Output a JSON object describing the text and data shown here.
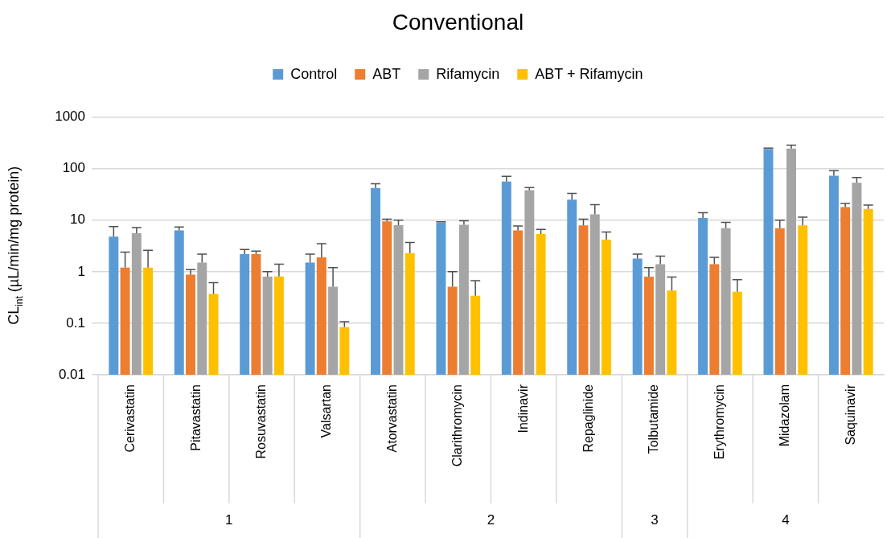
{
  "chart_data": {
    "type": "bar",
    "title": "Conventional",
    "ylabel": "CL$_{int}$ (µL/min/mg protein)",
    "categories": [
      "Cerivastatin",
      "Pitavastatin",
      "Rosuvastatin",
      "Valsartan",
      "Atorvastatin",
      "Clarithromycin",
      "Indinavir",
      "Repaglinide",
      "Tolbutamide",
      "Erythromycin",
      "Midazolam",
      "Saquinavir"
    ],
    "series": [
      {
        "name": "Control",
        "color": "#5b9bd5",
        "values": [
          4.8,
          6.3,
          2.2,
          1.5,
          42,
          9.0,
          56,
          25,
          1.8,
          11,
          240,
          73
        ],
        "errors": [
          [
            4.8,
            7.5
          ],
          [
            6.3,
            7.4
          ],
          [
            2.2,
            2.7
          ],
          [
            1.5,
            2.2
          ],
          [
            42,
            51
          ],
          [
            9.0,
            9.3
          ],
          [
            56,
            71
          ],
          [
            25,
            33
          ],
          [
            1.8,
            2.2
          ],
          [
            11,
            14
          ],
          [
            240,
            250
          ],
          [
            73,
            91
          ]
        ]
      },
      {
        "name": "ABT",
        "color": "#ed7d31",
        "values": [
          1.2,
          0.88,
          2.2,
          1.9,
          9.5,
          0.51,
          6.3,
          7.9,
          0.8,
          1.4,
          7.0,
          18
        ],
        "errors": [
          [
            1.2,
            2.4
          ],
          [
            0.88,
            1.1
          ],
          [
            2.2,
            2.5
          ],
          [
            1.9,
            3.5
          ],
          [
            9.5,
            10.5
          ],
          [
            0.51,
            1.0
          ],
          [
            6.3,
            7.7
          ],
          [
            7.9,
            10.5
          ],
          [
            0.8,
            1.2
          ],
          [
            1.4,
            1.9
          ],
          [
            7.0,
            10
          ],
          [
            18,
            21
          ]
        ]
      },
      {
        "name": "Rifamycin",
        "color": "#a5a5a5",
        "values": [
          5.6,
          1.5,
          0.8,
          0.51,
          8.0,
          8.1,
          38,
          13,
          1.4,
          7.0,
          245,
          53
        ],
        "errors": [
          [
            5.6,
            7.2
          ],
          [
            1.5,
            2.2
          ],
          [
            0.8,
            1.0
          ],
          [
            0.51,
            1.2
          ],
          [
            8.0,
            10
          ],
          [
            8.1,
            9.7
          ],
          [
            38,
            43
          ],
          [
            13,
            20
          ],
          [
            1.4,
            2.0
          ],
          [
            7.0,
            9.1
          ],
          [
            245,
            285
          ],
          [
            53,
            67
          ]
        ]
      },
      {
        "name": "ABT + Rifamycin",
        "color": "#ffc000",
        "values": [
          1.2,
          0.37,
          0.81,
          0.084,
          2.3,
          0.34,
          5.4,
          4.2,
          0.43,
          0.41,
          7.9,
          16.5
        ],
        "errors": [
          [
            1.2,
            2.6
          ],
          [
            0.37,
            0.61
          ],
          [
            0.81,
            1.4
          ],
          [
            0.084,
            0.107
          ],
          [
            2.3,
            3.7
          ],
          [
            0.34,
            0.67
          ],
          [
            5.4,
            6.6
          ],
          [
            4.2,
            5.9
          ],
          [
            0.43,
            0.79
          ],
          [
            0.41,
            0.7
          ],
          [
            7.9,
            11.4
          ],
          [
            16.5,
            19.7
          ]
        ]
      }
    ],
    "ylim": [
      0.01,
      1000
    ],
    "yticks": [
      0.01,
      0.1,
      1,
      10,
      100,
      1000
    ],
    "log": true,
    "grid": "y",
    "legend": "top",
    "annotations": [
      "1",
      "2",
      "3",
      "4"
    ]
  }
}
